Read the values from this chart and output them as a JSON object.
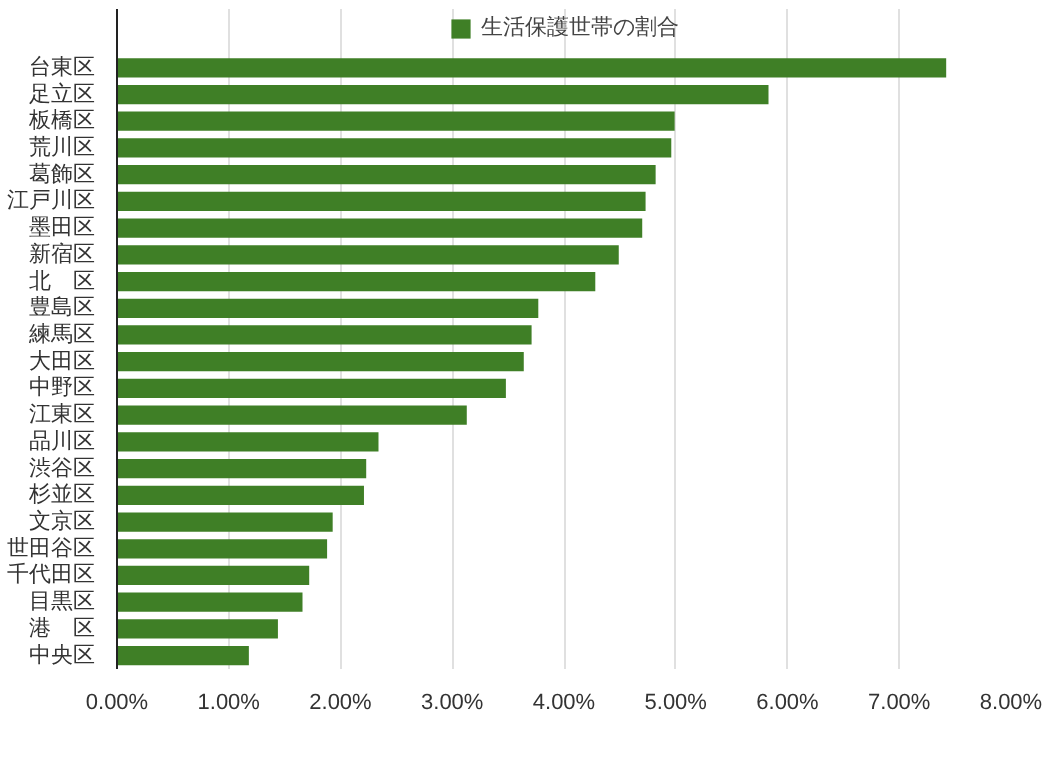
{
  "chart_data": {
    "type": "bar",
    "orientation": "horizontal",
    "categories": [
      "台東区",
      "足立区",
      "板橋区",
      "荒川区",
      "葛飾区",
      "江戸川区",
      "墨田区",
      "新宿区",
      "北　区",
      "豊島区",
      "練馬区",
      "大田区",
      "中野区",
      "江東区",
      "品川区",
      "渋谷区",
      "杉並区",
      "文京区",
      "世田谷区",
      "千代田区",
      "目黒区",
      "港　区",
      "中央区"
    ],
    "series": [
      {
        "name": "生活保護世帯の割合",
        "color": "#3f7f26",
        "values": [
          7.42,
          5.83,
          4.99,
          4.96,
          4.82,
          4.73,
          4.7,
          4.49,
          4.28,
          3.77,
          3.71,
          3.64,
          3.48,
          3.13,
          2.34,
          2.23,
          2.21,
          1.93,
          1.88,
          1.72,
          1.66,
          1.44,
          1.18
        ]
      }
    ],
    "xlim": [
      0,
      8
    ],
    "xticks": [
      {
        "value": 0,
        "label": "0.00%"
      },
      {
        "value": 1,
        "label": "1.00%"
      },
      {
        "value": 2,
        "label": "2.00%"
      },
      {
        "value": 3,
        "label": "3.00%"
      },
      {
        "value": 4,
        "label": "4.00%"
      },
      {
        "value": 5,
        "label": "5.00%"
      },
      {
        "value": 6,
        "label": "6.00%"
      },
      {
        "value": 7,
        "label": "7.00%"
      },
      {
        "value": 8,
        "label": "8.00%"
      }
    ],
    "grid": "x",
    "legend": "top"
  }
}
